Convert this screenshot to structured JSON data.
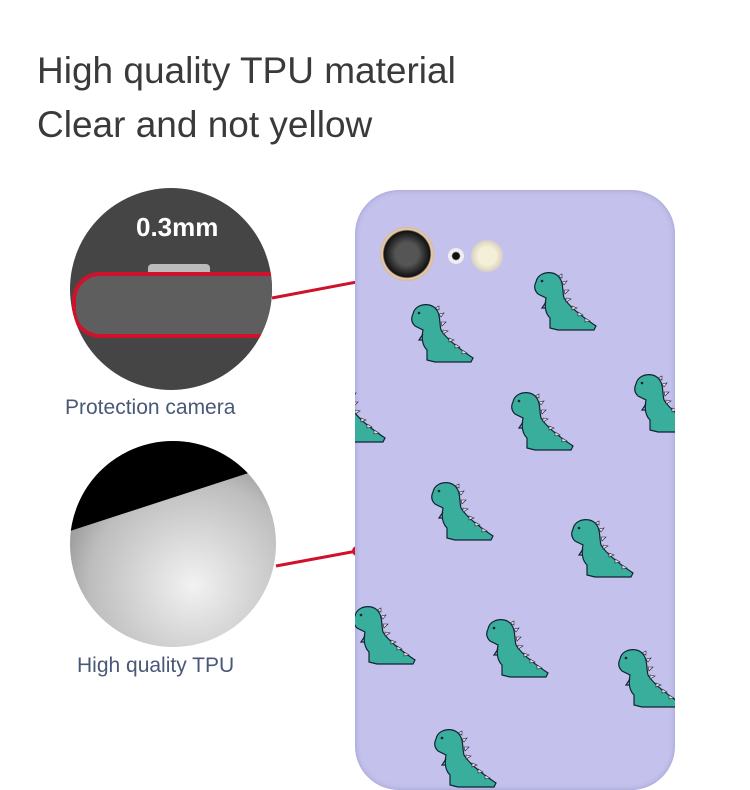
{
  "headline": {
    "line1": "High quality TPU material",
    "line2": "Clear and not yellow"
  },
  "callouts": [
    {
      "label": "0.3mm",
      "caption": "Protection camera"
    },
    {
      "caption": "High quality TPU"
    }
  ],
  "colors": {
    "case": "#c4c2ec",
    "dino": "#3aae9c",
    "accent_line": "#d0112b",
    "caption": "#4a5878"
  }
}
